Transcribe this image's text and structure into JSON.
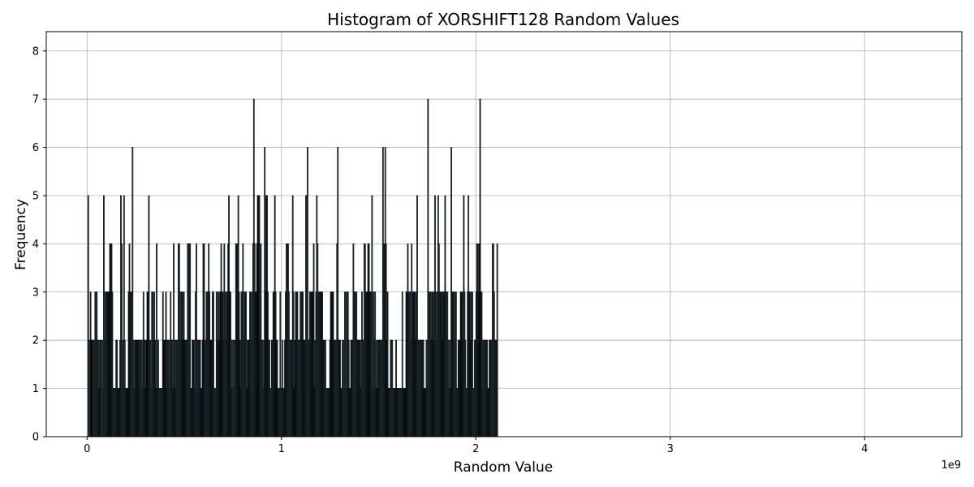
{
  "chart_data": {
    "type": "bar",
    "title": "Histogram of XORSHIFT128 Random Values",
    "xlabel": "Random Value",
    "ylabel": "Frequency",
    "x_offset_label": "1e9",
    "x_ticks": [
      0,
      1,
      2,
      3,
      4
    ],
    "x_tick_labels": [
      "0",
      "1",
      "2",
      "3",
      "4"
    ],
    "y_ticks": [
      0,
      1,
      2,
      3,
      4,
      5,
      6,
      7,
      8
    ],
    "y_tick_labels": [
      "0",
      "1",
      "2",
      "3",
      "4",
      "5",
      "6",
      "7",
      "8"
    ],
    "xlim": [
      -0.21,
      4.5
    ],
    "ylim": [
      0,
      8.4
    ],
    "bin_start": 0.004,
    "bin_width": 0.004,
    "grid": true,
    "bar_color": "#87ceeb",
    "edge_color": "#000000",
    "grid_color": "#b0b0b0",
    "counts": [
      5,
      2,
      0,
      3,
      2,
      2,
      2,
      0,
      2,
      3,
      3,
      3,
      2,
      2,
      1,
      2,
      2,
      0,
      2,
      1,
      5,
      3,
      2,
      3,
      3,
      3,
      3,
      3,
      4,
      4,
      4,
      3,
      1,
      1,
      1,
      1,
      2,
      2,
      1,
      1,
      1,
      2,
      5,
      4,
      1,
      2,
      5,
      2,
      1,
      1,
      1,
      1,
      3,
      4,
      3,
      3,
      3,
      6,
      2,
      1,
      2,
      2,
      2,
      2,
      2,
      2,
      2,
      2,
      2,
      2,
      1,
      3,
      2,
      2,
      1,
      2,
      3,
      3,
      5,
      2,
      2,
      1,
      3,
      3,
      2,
      3,
      2,
      1,
      4,
      1,
      2,
      1,
      1,
      1,
      1,
      1,
      3,
      2,
      2,
      2,
      3,
      1,
      2,
      2,
      1,
      2,
      3,
      2,
      2,
      1,
      4,
      2,
      1,
      2,
      2,
      2,
      4,
      4,
      3,
      2,
      3,
      3,
      2,
      3,
      2,
      2,
      2,
      2,
      4,
      4,
      4,
      4,
      1,
      1,
      2,
      2,
      2,
      1,
      3,
      4,
      2,
      2,
      2,
      2,
      2,
      1,
      1,
      2,
      4,
      4,
      2,
      2,
      3,
      3,
      3,
      4,
      3,
      2,
      2,
      2,
      3,
      3,
      1,
      1,
      1,
      3,
      3,
      2,
      3,
      2,
      3,
      4,
      3,
      3,
      2,
      4,
      3,
      2,
      3,
      3,
      4,
      5,
      3,
      3,
      1,
      2,
      1,
      2,
      1,
      2,
      4,
      4,
      4,
      5,
      3,
      2,
      1,
      3,
      3,
      4,
      2,
      3,
      3,
      3,
      1,
      2,
      2,
      2,
      3,
      3,
      3,
      2,
      4,
      7,
      4,
      3,
      3,
      4,
      5,
      5,
      5,
      2,
      4,
      2,
      2,
      1,
      2,
      6,
      3,
      5,
      5,
      3,
      2,
      2,
      1,
      1,
      2,
      2,
      3,
      3,
      5,
      3,
      2,
      2,
      1,
      1,
      1,
      3,
      1,
      1,
      2,
      1,
      1,
      2,
      3,
      4,
      4,
      4,
      3,
      2,
      2,
      2,
      2,
      5,
      3,
      1,
      2,
      3,
      3,
      3,
      2,
      2,
      2,
      3,
      3,
      3,
      3,
      2,
      2,
      2,
      5,
      5,
      6,
      2,
      2,
      3,
      3,
      3,
      3,
      3,
      4,
      1,
      2,
      3,
      5,
      4,
      3,
      3,
      3,
      3,
      3,
      3,
      2,
      2,
      2,
      2,
      1,
      1,
      1,
      1,
      1,
      2,
      3,
      3,
      3,
      3,
      2,
      2,
      2,
      2,
      4,
      6,
      2,
      2,
      2,
      1,
      1,
      2,
      2,
      1,
      3,
      3,
      1,
      3,
      3,
      2,
      1,
      1,
      2,
      2,
      2,
      4,
      3,
      3,
      3,
      3,
      2,
      2,
      2,
      2,
      1,
      2,
      3,
      2,
      2,
      4,
      4,
      3,
      3,
      3,
      4,
      4,
      3,
      3,
      3,
      5,
      1,
      3,
      2,
      3,
      1,
      2,
      1,
      2,
      2,
      2,
      2,
      2,
      2,
      6,
      4,
      4,
      6,
      4,
      2,
      3,
      1,
      1,
      1,
      2,
      2,
      2,
      1,
      1,
      1,
      1,
      2,
      1,
      1,
      1,
      1,
      1,
      1,
      1,
      3,
      1,
      1,
      1,
      1,
      3,
      3,
      4,
      3,
      3,
      3,
      2,
      4,
      3,
      3,
      3,
      3,
      2,
      3,
      5,
      2,
      2,
      2,
      2,
      2,
      2,
      2,
      2,
      1,
      1,
      1,
      2,
      1,
      7,
      3,
      3,
      3,
      2,
      3,
      3,
      2,
      3,
      5,
      3,
      2,
      3,
      5,
      4,
      3,
      3,
      3,
      3,
      2,
      3,
      3,
      5,
      3,
      3,
      3,
      2,
      1,
      2,
      1,
      6,
      3,
      3,
      3,
      2,
      3,
      3,
      1,
      1,
      2,
      2,
      2,
      3,
      3,
      3,
      2,
      5,
      3,
      2,
      1,
      1,
      3,
      5,
      3,
      3,
      2,
      3,
      3,
      1,
      1,
      2,
      2,
      3,
      4,
      4,
      3,
      4,
      7,
      3,
      3,
      1,
      2,
      2,
      2,
      2,
      2,
      2,
      1,
      1,
      2,
      2,
      2,
      2,
      4,
      4,
      3,
      2,
      2,
      2,
      4
    ]
  }
}
